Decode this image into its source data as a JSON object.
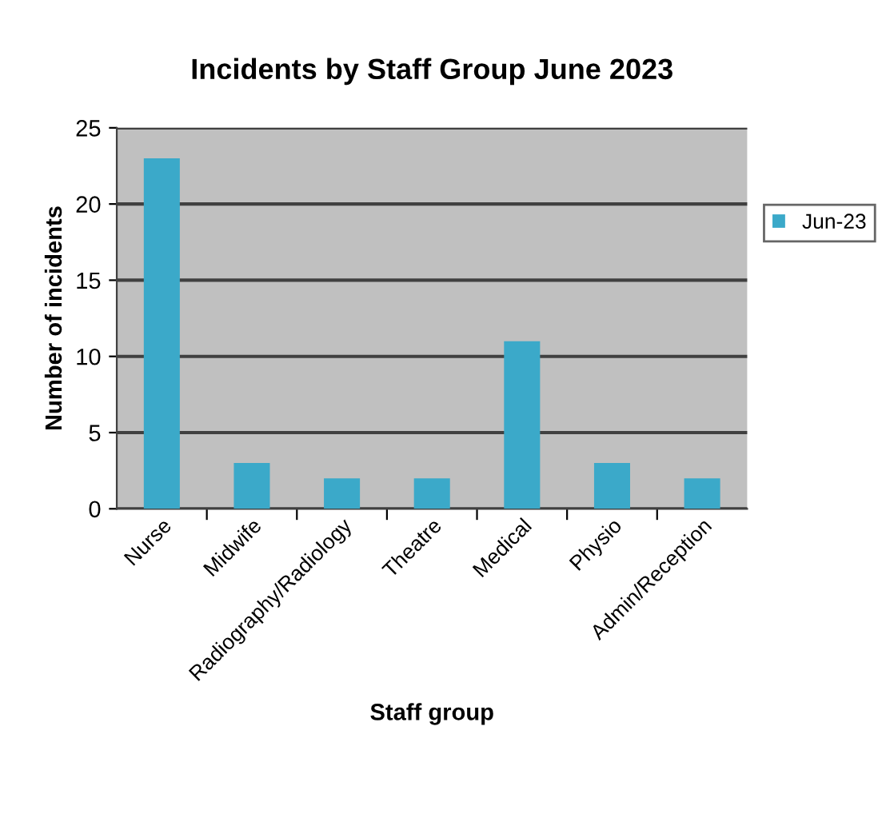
{
  "chart_data": {
    "type": "bar",
    "title": "Incidents by Staff Group June 2023",
    "xlabel": "Staff group",
    "ylabel": "Number of incidents",
    "categories": [
      "Nurse",
      "Midwife",
      "Radiography/Radiology",
      "Theatre",
      "Medical",
      "Physio",
      "Admin/Reception"
    ],
    "series": [
      {
        "name": "Jun-23",
        "color": "#3ba9c9",
        "values": [
          23,
          3,
          2,
          2,
          11,
          3,
          2
        ]
      }
    ],
    "ylim": [
      0,
      25
    ],
    "yticks": [
      0,
      5,
      10,
      15,
      20,
      25
    ],
    "grid": "y",
    "legend": "right"
  }
}
